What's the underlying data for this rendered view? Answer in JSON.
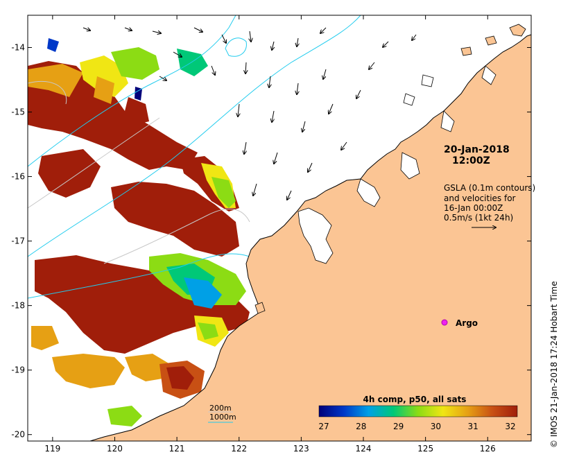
{
  "map": {
    "longitude_ticks": [
      "119",
      "120",
      "121",
      "122",
      "123",
      "124",
      "125",
      "126"
    ],
    "latitude_ticks": [
      "-14",
      "-15",
      "-16",
      "-17",
      "-18",
      "-19",
      "-20"
    ],
    "extent": {
      "lon_min": 118.6,
      "lon_max": 126.7,
      "lat_min": -20.1,
      "lat_max": -13.5
    },
    "colors": {
      "land": "#fbc594",
      "coast": "#000000",
      "contour_cyan": "#22ccee",
      "contour_grey": "#c8c8c8",
      "argo_marker": "#ee22ee"
    }
  },
  "annotations": {
    "date": "20-Jan-2018",
    "time": "12:00Z",
    "gsla_line1": "GSLA (0.1m contours)",
    "gsla_line2": "and velocities for",
    "gsla_line3": "16-Jan 00:00Z",
    "gsla_line4": "0.5m/s (1kt 24h)",
    "argo_label": "Argo",
    "depth_200": "200m",
    "depth_1000": "1000m"
  },
  "colorbar": {
    "title": "4h comp, p50, all sats",
    "ticks": [
      "27",
      "28",
      "29",
      "30",
      "31",
      "32"
    ],
    "stops": [
      "#00007a",
      "#0038c8",
      "#00a0e6",
      "#00c878",
      "#8cdc14",
      "#f0e614",
      "#e6a014",
      "#c85014",
      "#a01e0a"
    ]
  },
  "credit": "© IMOS 21-Jan-2018 17:24 Hobart Time"
}
